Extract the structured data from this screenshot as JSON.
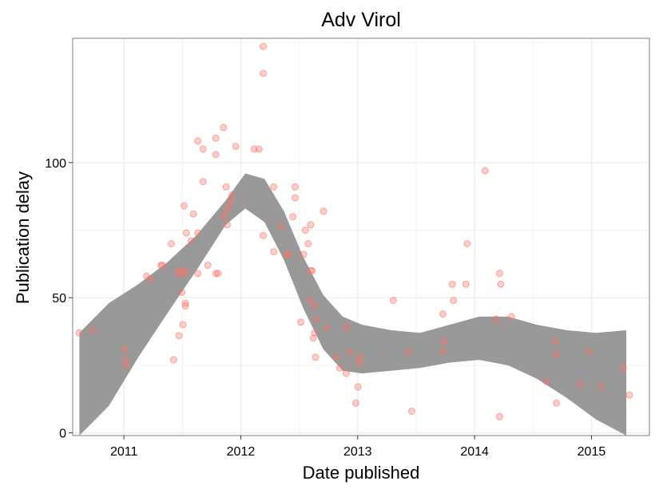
{
  "chart_data": {
    "type": "scatter",
    "title": "Adv Virol",
    "xlabel": "Date published",
    "ylabel": "Publication delay",
    "xlim": [
      "2010-07-25",
      "2015-07-01"
    ],
    "ylim": [
      -1,
      146
    ],
    "x_ticks": [
      {
        "value": "2011-01-01",
        "label": "2011"
      },
      {
        "value": "2012-01-01",
        "label": "2012"
      },
      {
        "value": "2013-01-01",
        "label": "2013"
      },
      {
        "value": "2014-01-01",
        "label": "2014"
      },
      {
        "value": "2015-01-01",
        "label": "2015"
      }
    ],
    "y_ticks": [
      {
        "value": 0,
        "label": "0"
      },
      {
        "value": 50,
        "label": "50"
      },
      {
        "value": 100,
        "label": "100"
      }
    ],
    "grid": true,
    "legend": "none",
    "colors": {
      "points": "#f8766d",
      "band": "#999999",
      "grid": "#ebebeb",
      "panel_border": "#7f7f7f"
    },
    "series": [
      {
        "type": "scatter",
        "points": [
          {
            "x": "2010-08-14",
            "y": 37
          },
          {
            "x": "2010-09-24",
            "y": 38
          },
          {
            "x": "2011-01-03",
            "y": 31
          },
          {
            "x": "2011-01-06",
            "y": 27
          },
          {
            "x": "2011-01-09",
            "y": 25
          },
          {
            "x": "2011-03-13",
            "y": 58
          },
          {
            "x": "2011-03-24",
            "y": 57
          },
          {
            "x": "2011-04-27",
            "y": 62
          },
          {
            "x": "2011-05-01",
            "y": 62
          },
          {
            "x": "2011-05-29",
            "y": 70
          },
          {
            "x": "2011-06-05",
            "y": 27
          },
          {
            "x": "2011-06-19",
            "y": 60
          },
          {
            "x": "2011-06-22",
            "y": 36
          },
          {
            "x": "2011-06-22",
            "y": 59
          },
          {
            "x": "2011-07-01",
            "y": 52
          },
          {
            "x": "2011-07-04",
            "y": 40
          },
          {
            "x": "2011-07-08",
            "y": 60
          },
          {
            "x": "2011-07-08",
            "y": 59
          },
          {
            "x": "2011-07-08",
            "y": 84
          },
          {
            "x": "2011-07-12",
            "y": 48
          },
          {
            "x": "2011-07-12",
            "y": 47
          },
          {
            "x": "2011-07-15",
            "y": 74
          },
          {
            "x": "2011-07-30",
            "y": 71
          },
          {
            "x": "2011-08-06",
            "y": 81
          },
          {
            "x": "2011-08-20",
            "y": 108
          },
          {
            "x": "2011-08-20",
            "y": 59
          },
          {
            "x": "2011-08-20",
            "y": 74
          },
          {
            "x": "2011-09-05",
            "y": 105
          },
          {
            "x": "2011-09-05",
            "y": 93
          },
          {
            "x": "2011-09-20",
            "y": 62
          },
          {
            "x": "2011-10-15",
            "y": 59
          },
          {
            "x": "2011-10-15",
            "y": 109
          },
          {
            "x": "2011-10-15",
            "y": 103
          },
          {
            "x": "2011-10-22",
            "y": 59
          },
          {
            "x": "2011-11-08",
            "y": 80
          },
          {
            "x": "2011-11-08",
            "y": 113
          },
          {
            "x": "2011-11-16",
            "y": 82
          },
          {
            "x": "2011-11-16",
            "y": 91
          },
          {
            "x": "2011-11-20",
            "y": 77
          },
          {
            "x": "2011-11-24",
            "y": 84
          },
          {
            "x": "2011-12-01",
            "y": 86
          },
          {
            "x": "2011-12-05",
            "y": 88
          },
          {
            "x": "2011-12-16",
            "y": 106
          },
          {
            "x": "2012-02-12",
            "y": 105
          },
          {
            "x": "2012-02-27",
            "y": 105
          },
          {
            "x": "2012-03-11",
            "y": 143
          },
          {
            "x": "2012-03-11",
            "y": 133
          },
          {
            "x": "2012-03-11",
            "y": 73
          },
          {
            "x": "2012-04-13",
            "y": 91
          },
          {
            "x": "2012-04-13",
            "y": 67
          },
          {
            "x": "2012-05-07",
            "y": 76
          },
          {
            "x": "2012-05-25",
            "y": 66
          },
          {
            "x": "2012-05-29",
            "y": 66
          },
          {
            "x": "2012-06-12",
            "y": 80
          },
          {
            "x": "2012-06-19",
            "y": 91
          },
          {
            "x": "2012-06-19",
            "y": 87
          },
          {
            "x": "2012-07-07",
            "y": 41
          },
          {
            "x": "2012-07-16",
            "y": 66
          },
          {
            "x": "2012-07-21",
            "y": 75
          },
          {
            "x": "2012-07-30",
            "y": 70
          },
          {
            "x": "2012-08-04",
            "y": 49
          },
          {
            "x": "2012-08-07",
            "y": 77
          },
          {
            "x": "2012-08-07",
            "y": 60
          },
          {
            "x": "2012-08-11",
            "y": 60
          },
          {
            "x": "2012-08-15",
            "y": 35
          },
          {
            "x": "2012-08-19",
            "y": 37
          },
          {
            "x": "2012-08-19",
            "y": 47
          },
          {
            "x": "2012-08-22",
            "y": 28
          },
          {
            "x": "2012-08-26",
            "y": 42
          },
          {
            "x": "2012-09-16",
            "y": 82
          },
          {
            "x": "2012-09-27",
            "y": 39
          },
          {
            "x": "2012-10-26",
            "y": 28
          },
          {
            "x": "2012-11-06",
            "y": 24
          },
          {
            "x": "2012-11-26",
            "y": 39
          },
          {
            "x": "2012-11-26",
            "y": 22
          },
          {
            "x": "2012-12-07",
            "y": 30
          },
          {
            "x": "2012-12-26",
            "y": 11
          },
          {
            "x": "2013-01-02",
            "y": 17
          },
          {
            "x": "2013-01-06",
            "y": 28
          },
          {
            "x": "2013-01-06",
            "y": 26
          },
          {
            "x": "2013-04-22",
            "y": 49
          },
          {
            "x": "2013-06-08",
            "y": 30
          },
          {
            "x": "2013-06-19",
            "y": 8
          },
          {
            "x": "2013-09-24",
            "y": 44
          },
          {
            "x": "2013-09-24",
            "y": 30
          },
          {
            "x": "2013-09-28",
            "y": 34
          },
          {
            "x": "2013-10-23",
            "y": 55
          },
          {
            "x": "2013-10-27",
            "y": 49
          },
          {
            "x": "2013-12-05",
            "y": 55
          },
          {
            "x": "2013-12-09",
            "y": 70
          },
          {
            "x": "2014-02-03",
            "y": 97
          },
          {
            "x": "2014-03-09",
            "y": 42
          },
          {
            "x": "2014-03-20",
            "y": 59
          },
          {
            "x": "2014-03-24",
            "y": 55
          },
          {
            "x": "2014-03-20",
            "y": 6
          },
          {
            "x": "2014-04-26",
            "y": 43
          },
          {
            "x": "2014-08-14",
            "y": 19
          },
          {
            "x": "2014-09-10",
            "y": 34
          },
          {
            "x": "2014-09-14",
            "y": 29
          },
          {
            "x": "2014-09-14",
            "y": 11
          },
          {
            "x": "2014-11-26",
            "y": 18
          },
          {
            "x": "2014-12-24",
            "y": 30
          },
          {
            "x": "2015-01-31",
            "y": 17
          },
          {
            "x": "2015-04-10",
            "y": 24
          },
          {
            "x": "2015-04-30",
            "y": 14
          }
        ]
      },
      {
        "type": "band",
        "x": [
          "2010-08-15",
          "2010-11-15",
          "2011-02-15",
          "2011-05-15",
          "2011-08-15",
          "2011-11-15",
          "2012-01-15",
          "2012-03-15",
          "2012-05-15",
          "2012-07-15",
          "2012-09-15",
          "2012-11-15",
          "2013-01-15",
          "2013-04-15",
          "2013-07-15",
          "2013-10-15",
          "2014-01-15",
          "2014-04-15",
          "2014-07-15",
          "2014-10-15",
          "2015-01-15",
          "2015-04-20"
        ],
        "lower": [
          -1,
          10,
          28,
          44,
          60,
          77,
          83,
          78,
          64,
          46,
          31,
          23,
          22,
          23,
          24,
          26,
          27,
          25,
          20,
          13,
          5,
          -1
        ],
        "upper": [
          37,
          48,
          55,
          63,
          73,
          86,
          96,
          94,
          82,
          65,
          51,
          43,
          40,
          38,
          37,
          40,
          43,
          43,
          40,
          38,
          37,
          38
        ]
      }
    ]
  }
}
